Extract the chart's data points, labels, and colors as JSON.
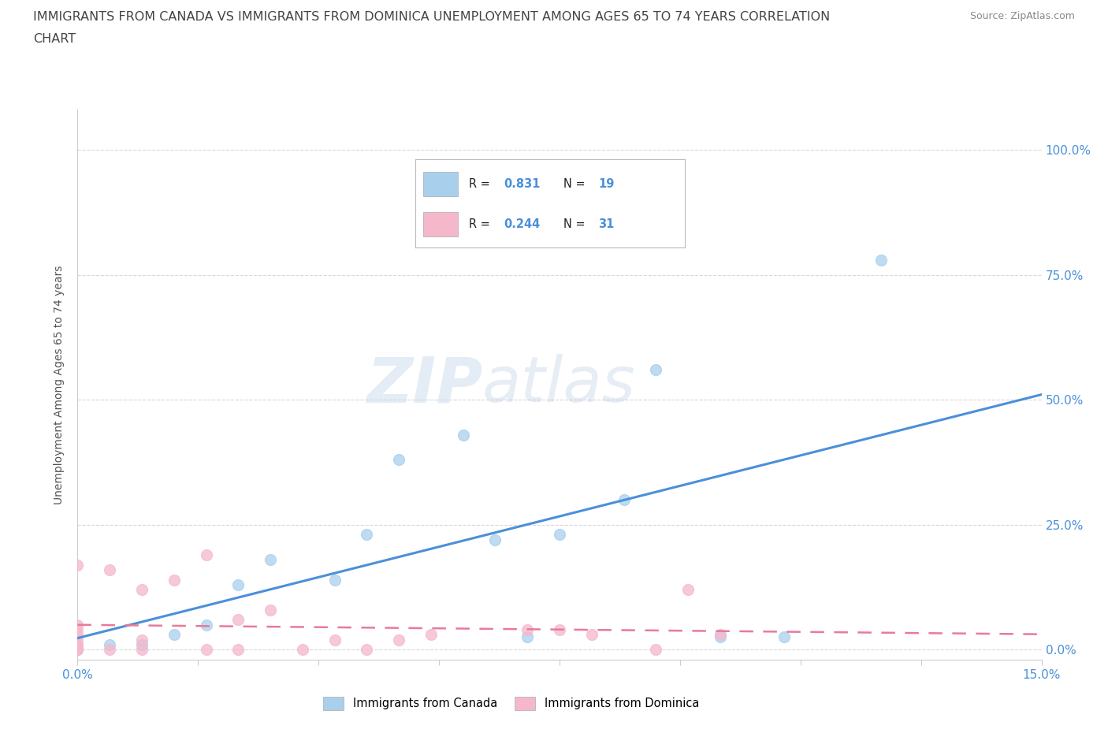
{
  "title_line1": "IMMIGRANTS FROM CANADA VS IMMIGRANTS FROM DOMINICA UNEMPLOYMENT AMONG AGES 65 TO 74 YEARS CORRELATION",
  "title_line2": "CHART",
  "source": "Source: ZipAtlas.com",
  "ylabel": "Unemployment Among Ages 65 to 74 years",
  "xlim": [
    0.0,
    0.15
  ],
  "ylim": [
    -0.02,
    1.08
  ],
  "yticks": [
    0.0,
    0.25,
    0.5,
    0.75,
    1.0
  ],
  "ytick_labels": [
    "0.0%",
    "25.0%",
    "50.0%",
    "75.0%",
    "100.0%"
  ],
  "canada_R": 0.831,
  "canada_N": 19,
  "dominica_R": 0.244,
  "dominica_N": 31,
  "canada_color": "#a8d0ed",
  "dominica_color": "#f5b8cb",
  "canada_line_color": "#4a90d9",
  "dominica_line_color": "#e87a9a",
  "watermark_ZI": "ZIP",
  "watermark_atlas": "atlas",
  "background_color": "#ffffff",
  "grid_color": "#d8d8d8",
  "canada_x": [
    0.0,
    0.005,
    0.01,
    0.015,
    0.02,
    0.025,
    0.03,
    0.04,
    0.045,
    0.05,
    0.06,
    0.065,
    0.07,
    0.075,
    0.085,
    0.09,
    0.1,
    0.11,
    0.125
  ],
  "canada_y": [
    0.0,
    0.01,
    0.01,
    0.03,
    0.05,
    0.13,
    0.18,
    0.14,
    0.23,
    0.38,
    0.43,
    0.22,
    0.025,
    0.23,
    0.3,
    0.56,
    0.025,
    0.025,
    0.78
  ],
  "dominica_x": [
    0.0,
    0.0,
    0.0,
    0.0,
    0.0,
    0.0,
    0.0,
    0.0,
    0.0,
    0.005,
    0.005,
    0.01,
    0.01,
    0.01,
    0.015,
    0.02,
    0.02,
    0.025,
    0.025,
    0.03,
    0.035,
    0.04,
    0.045,
    0.05,
    0.055,
    0.07,
    0.075,
    0.08,
    0.09,
    0.095,
    0.1
  ],
  "dominica_y": [
    0.0,
    0.0,
    0.01,
    0.01,
    0.02,
    0.03,
    0.04,
    0.05,
    0.17,
    0.0,
    0.16,
    0.0,
    0.02,
    0.12,
    0.14,
    0.0,
    0.19,
    0.0,
    0.06,
    0.08,
    0.0,
    0.02,
    0.0,
    0.02,
    0.03,
    0.04,
    0.04,
    0.03,
    0.0,
    0.12,
    0.03
  ]
}
